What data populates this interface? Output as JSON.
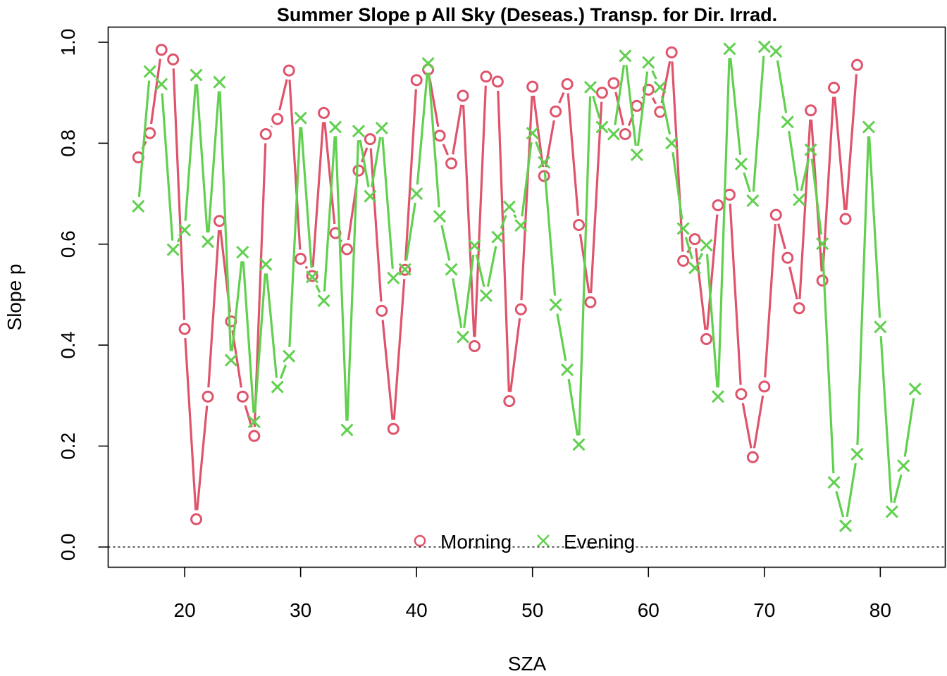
{
  "chart_data": {
    "type": "line",
    "title": "Summer Slope p All Sky (Deseas.) Transp. for Dir. Irrad.",
    "xlabel": "SZA",
    "ylabel": "Slope p",
    "xlim": [
      13.4,
      85.6
    ],
    "ylim": [
      -0.04,
      1.03
    ],
    "xticks": [
      20,
      30,
      40,
      50,
      60,
      70,
      80
    ],
    "yticks": [
      0.0,
      0.2,
      0.4,
      0.6,
      0.8,
      1.0
    ],
    "ytick_labels": [
      "0.0",
      "0.2",
      "0.4",
      "0.6",
      "0.8",
      "1.0"
    ],
    "reference_line": 0,
    "legend_position": "bottom-center",
    "series": [
      {
        "name": "Morning",
        "color": "#DF536B",
        "marker": "circle",
        "x": [
          16,
          17,
          18,
          19,
          20,
          21,
          22,
          23,
          24,
          25,
          26,
          27,
          28,
          29,
          30,
          31,
          32,
          33,
          34,
          35,
          36,
          37,
          38,
          39,
          40,
          41,
          42,
          43,
          44,
          45,
          46,
          47,
          48,
          49,
          50,
          51,
          52,
          53,
          54,
          55,
          56,
          57,
          58,
          59,
          60,
          61,
          62,
          63,
          64,
          65,
          66,
          67,
          68,
          69,
          70,
          71,
          72,
          73,
          74,
          75,
          76,
          77,
          78
        ],
        "y": [
          0.772,
          0.82,
          0.985,
          0.966,
          0.432,
          0.055,
          0.298,
          0.646,
          0.447,
          0.298,
          0.22,
          0.818,
          0.848,
          0.944,
          0.571,
          0.537,
          0.86,
          0.622,
          0.59,
          0.746,
          0.808,
          0.468,
          0.234,
          0.549,
          0.925,
          0.946,
          0.815,
          0.76,
          0.894,
          0.398,
          0.932,
          0.922,
          0.289,
          0.471,
          0.912,
          0.735,
          0.863,
          0.917,
          0.638,
          0.485,
          0.9,
          0.919,
          0.818,
          0.874,
          0.906,
          0.862,
          0.98,
          0.567,
          0.61,
          0.412,
          0.677,
          0.698,
          0.303,
          0.178,
          0.318,
          0.658,
          0.573,
          0.473,
          0.865,
          0.528,
          0.91,
          0.65,
          0.955
        ]
      },
      {
        "name": "Evening",
        "color": "#61D04F",
        "marker": "cross",
        "x": [
          16,
          17,
          18,
          19,
          20,
          21,
          22,
          23,
          24,
          25,
          26,
          27,
          28,
          29,
          30,
          31,
          32,
          33,
          34,
          35,
          36,
          37,
          38,
          39,
          40,
          41,
          42,
          43,
          44,
          45,
          46,
          47,
          48,
          49,
          50,
          51,
          52,
          53,
          54,
          55,
          56,
          57,
          58,
          59,
          60,
          61,
          62,
          63,
          64,
          65,
          66,
          67,
          68,
          69,
          70,
          71,
          72,
          73,
          74,
          75,
          76,
          77,
          78,
          79,
          80,
          81,
          82,
          83
        ],
        "y": [
          0.675,
          0.942,
          0.917,
          0.589,
          0.628,
          0.935,
          0.605,
          0.921,
          0.37,
          0.584,
          0.248,
          0.56,
          0.317,
          0.378,
          0.85,
          0.535,
          0.488,
          0.832,
          0.232,
          0.824,
          0.695,
          0.83,
          0.533,
          0.55,
          0.7,
          0.958,
          0.655,
          0.55,
          0.416,
          0.597,
          0.498,
          0.614,
          0.674,
          0.637,
          0.82,
          0.762,
          0.48,
          0.351,
          0.203,
          0.911,
          0.832,
          0.818,
          0.973,
          0.777,
          0.96,
          0.911,
          0.8,
          0.631,
          0.553,
          0.598,
          0.298,
          0.987,
          0.759,
          0.686,
          0.991,
          0.982,
          0.842,
          0.688,
          0.787,
          0.601,
          0.128,
          0.042,
          0.184,
          0.832,
          0.436,
          0.07,
          0.161,
          0.313
        ]
      }
    ]
  }
}
